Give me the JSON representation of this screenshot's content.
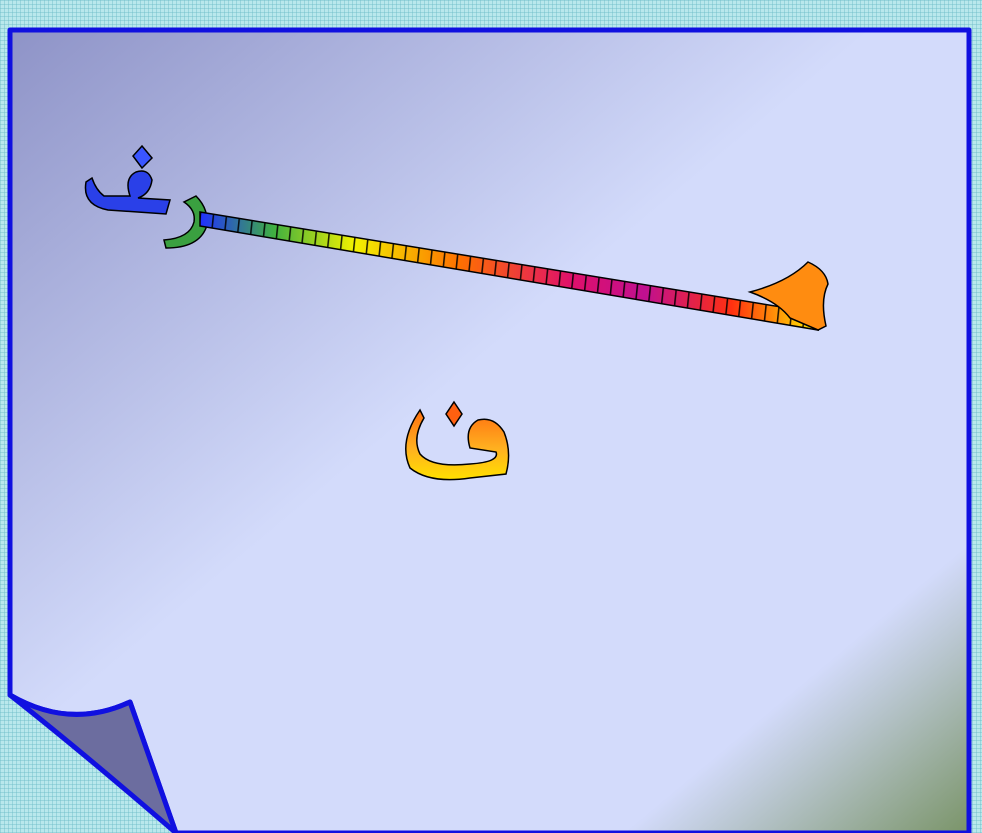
{
  "slide": {
    "background_grid_color": "#b9e8ec",
    "page_border_color": "#1010e0",
    "page_gradient": [
      "#8f94c8",
      "#d4dcfb",
      "#7f9770"
    ],
    "curl_color": "#6e6fa0"
  },
  "wordart": {
    "line1": "حرف",
    "line2": "ض"
  }
}
